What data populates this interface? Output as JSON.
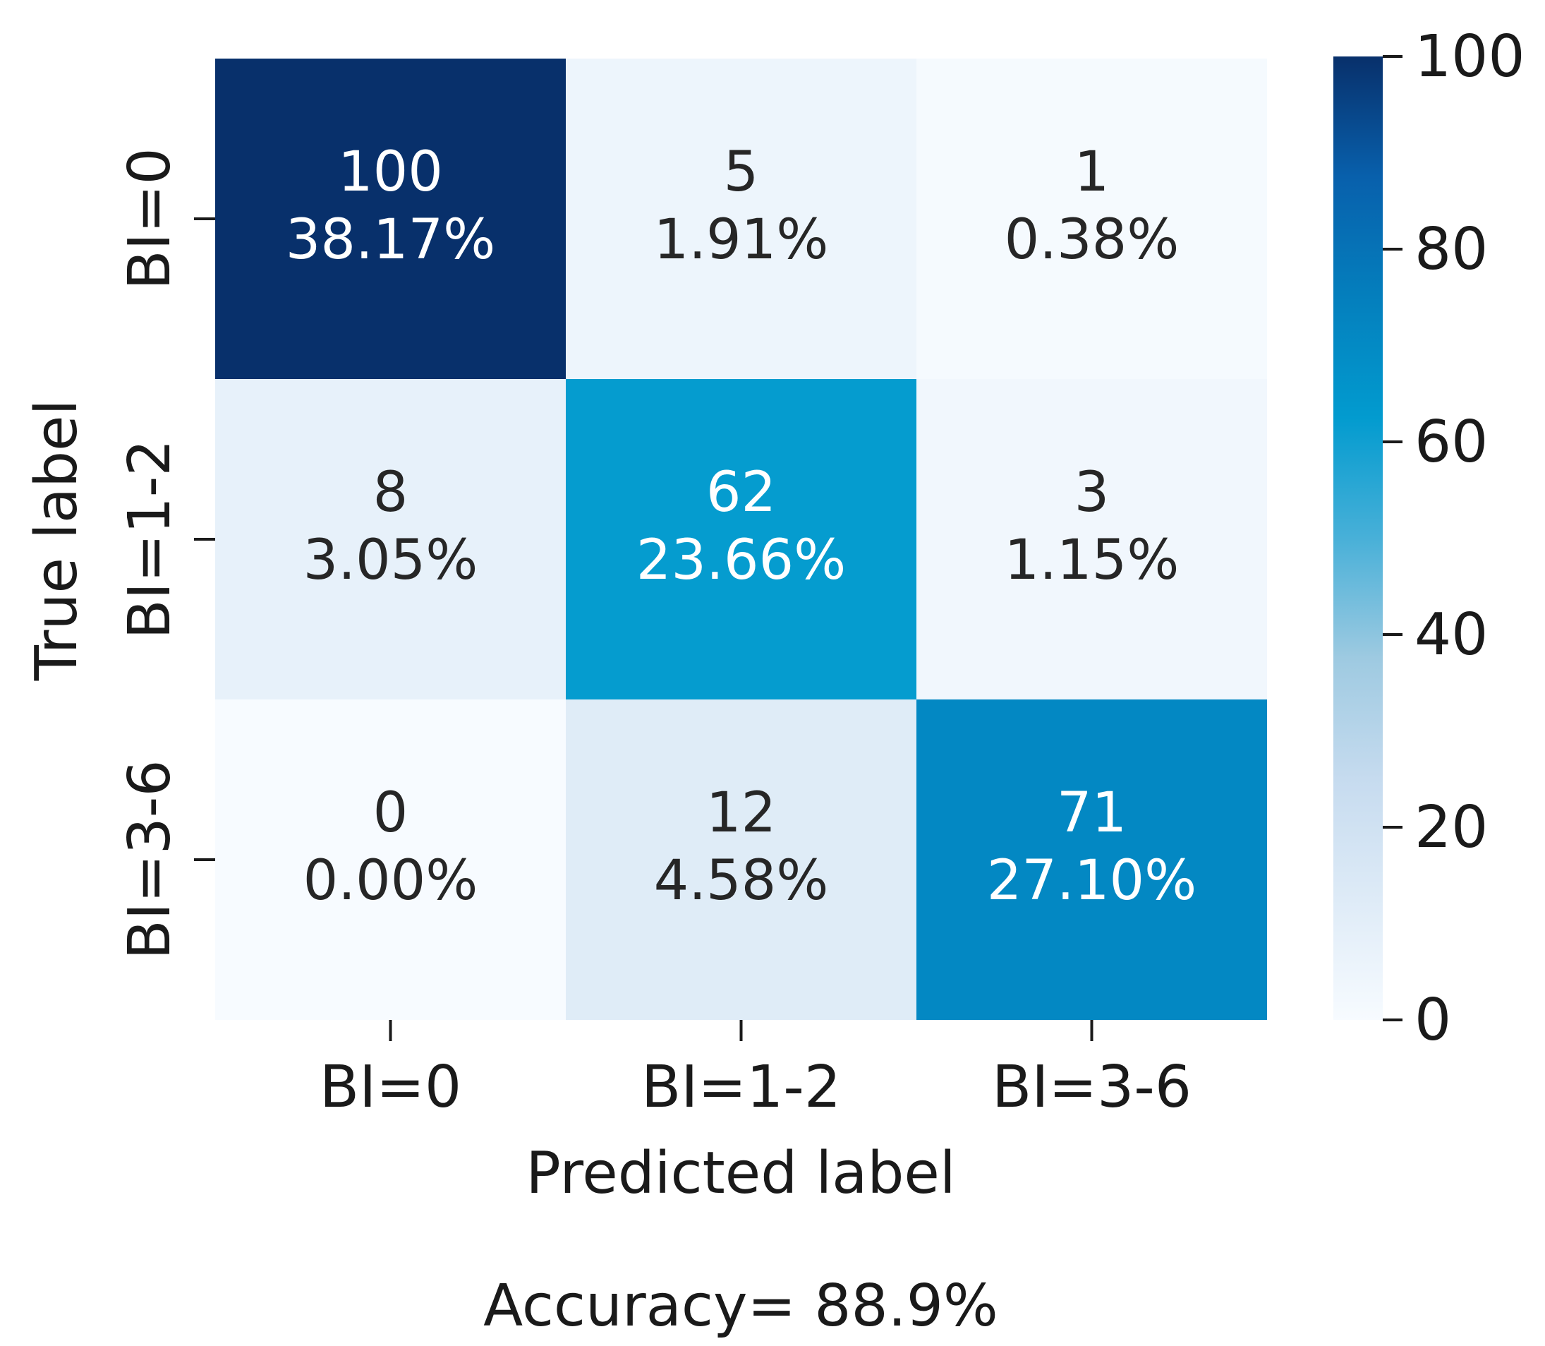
{
  "chart_data": {
    "type": "heatmap",
    "title": "",
    "xlabel": "Predicted label",
    "ylabel": "True label",
    "x_categories": [
      "BI=0",
      "BI=1-2",
      "BI=3-6"
    ],
    "y_categories": [
      "BI=0",
      "BI=1-2",
      "BI=3-6"
    ],
    "values": [
      [
        100,
        5,
        1
      ],
      [
        8,
        62,
        3
      ],
      [
        0,
        12,
        71
      ]
    ],
    "percent_labels": [
      [
        "38.17%",
        "1.91%",
        "0.38%"
      ],
      [
        "3.05%",
        "23.66%",
        "1.15%"
      ],
      [
        "0.00%",
        "4.58%",
        "27.10%"
      ]
    ],
    "colorbar": {
      "range": [
        0,
        100
      ],
      "ticks": [
        0,
        20,
        40,
        60,
        80,
        100
      ],
      "colormap": "Blues"
    },
    "footer": "Accuracy= 88.9%"
  }
}
